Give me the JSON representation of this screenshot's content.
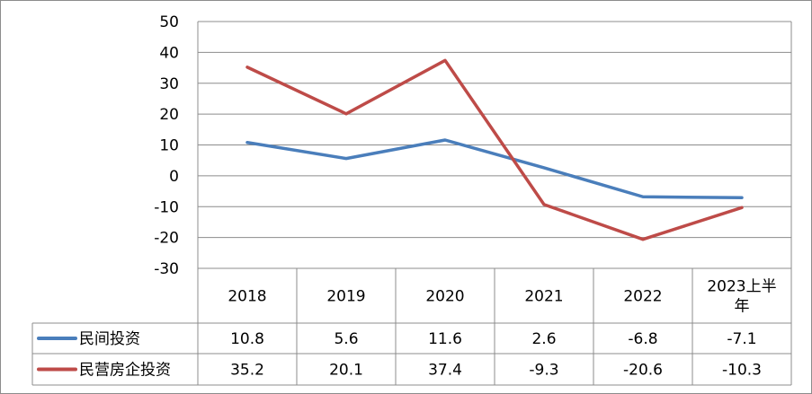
{
  "chart_data": {
    "type": "line",
    "title": "",
    "xlabel": "",
    "ylabel": "",
    "categories": [
      "2018",
      "2019",
      "2020",
      "2021",
      "2022",
      "2023上半年"
    ],
    "category_lines": [
      [
        "2018"
      ],
      [
        "2019"
      ],
      [
        "2020"
      ],
      [
        "2021"
      ],
      [
        "2022"
      ],
      [
        "2023上半",
        "年"
      ]
    ],
    "ylim": [
      -30,
      50
    ],
    "yticks": [
      50,
      40,
      30,
      20,
      10,
      0,
      -10,
      -20,
      -30
    ],
    "grid": true,
    "legend": "data-table",
    "series": [
      {
        "name": "民间投资",
        "color": "#4a7ebb",
        "values": [
          10.8,
          5.6,
          11.6,
          2.6,
          -6.8,
          -7.1
        ],
        "labels": [
          "10.8",
          "5.6",
          "11.6",
          "2.6",
          "-6.8",
          "-7.1"
        ]
      },
      {
        "name": "民营房企投资",
        "color": "#be4b48",
        "values": [
          35.2,
          20.1,
          37.4,
          -9.3,
          -20.6,
          -10.3
        ],
        "labels": [
          "35.2",
          "20.1",
          "37.4",
          "-9.3",
          "-20.6",
          "-10.3"
        ]
      }
    ]
  }
}
